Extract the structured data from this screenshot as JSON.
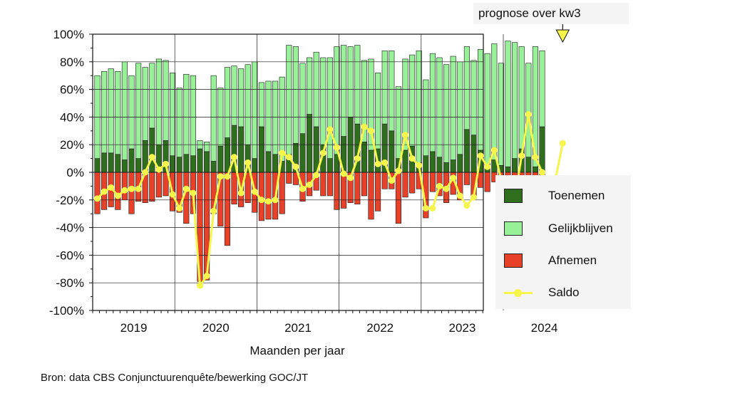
{
  "chart_data": {
    "type": "bar",
    "subtype": "stacked-bar-with-line",
    "xlabel": "Maanden per jaar",
    "ylabel": "",
    "ylim": [
      -100,
      100
    ],
    "yticks": [
      "100%",
      "80%",
      "60%",
      "40%",
      "20%",
      "0%",
      "-20%",
      "-40%",
      "-60%",
      "-80%",
      "-100%"
    ],
    "year_labels": [
      "2019",
      "2020",
      "2021",
      "2022",
      "2023",
      "2024"
    ],
    "months_per_year": 12,
    "grid": true,
    "legend_position": "right",
    "annotation": "prognose over kw3",
    "series": [
      {
        "name": "Toenemen",
        "color": "#2e6e1c",
        "values": [
          10,
          14,
          14,
          13,
          9,
          17,
          10,
          23,
          32,
          20,
          23,
          12,
          11,
          13,
          12,
          17,
          15,
          8,
          19,
          25,
          34,
          33,
          20,
          10,
          33,
          15,
          13,
          8,
          13,
          21,
          28,
          42,
          33,
          20,
          10,
          13,
          26,
          40,
          35,
          22,
          16,
          17,
          35,
          30,
          10,
          16,
          19,
          7,
          12,
          15,
          11,
          7,
          9,
          13,
          31,
          27,
          16,
          6,
          9,
          5,
          4,
          10,
          17,
          11,
          4,
          33
        ]
      },
      {
        "name": "Gelijkblijven",
        "color": "#98f098",
        "values": [
          60,
          59,
          61,
          60,
          71,
          53,
          69,
          53,
          47,
          62,
          58,
          60,
          50,
          58,
          58,
          6,
          7,
          62,
          42,
          51,
          43,
          42,
          58,
          70,
          32,
          51,
          53,
          61,
          79,
          70,
          51,
          41,
          54,
          63,
          73,
          78,
          66,
          51,
          57,
          59,
          66,
          55,
          53,
          58,
          52,
          66,
          66,
          81,
          55,
          71,
          72,
          71,
          75,
          67,
          60,
          54,
          73,
          80,
          84,
          74,
          91,
          84,
          74,
          68,
          87,
          55
        ]
      },
      {
        "name": "Afnemen",
        "color": "#e8412a",
        "values": [
          -30,
          -27,
          -25,
          -27,
          -20,
          -30,
          -21,
          -22,
          -21,
          -18,
          -17,
          -28,
          -29,
          -37,
          -30,
          -79,
          -78,
          -30,
          -39,
          -53,
          -23,
          -25,
          -22,
          -29,
          -35,
          -34,
          -34,
          -30,
          -8,
          -9,
          -21,
          -17,
          -13,
          -17,
          -17,
          -27,
          -26,
          -22,
          -23,
          -17,
          -34,
          -28,
          -12,
          -12,
          -37,
          -18,
          -15,
          -12,
          -33,
          -14,
          -17,
          -22,
          -16,
          -20,
          -9,
          -19,
          -11,
          -14,
          -7,
          -22,
          -5,
          -6,
          -9,
          -21,
          -9,
          -12
        ]
      },
      {
        "name": "Saldo",
        "color": "#f5f54a",
        "values": [
          -19,
          -14,
          -11,
          -17,
          -13,
          -12,
          -12,
          0,
          11,
          2,
          6,
          -16,
          -26,
          -12,
          -15,
          -82,
          -75,
          -28,
          -3,
          -3,
          11,
          -15,
          7,
          -14,
          -20,
          -21,
          -20,
          14,
          11,
          4,
          -12,
          -9,
          -2,
          14,
          31,
          18,
          -1,
          -4,
          10,
          33,
          30,
          6,
          7,
          -6,
          1,
          27,
          10,
          5,
          -26,
          -26,
          -10,
          -12,
          -4,
          -17,
          -24,
          -18,
          12,
          4,
          16,
          -5,
          -21,
          -19,
          12,
          42,
          11,
          0,
          -9,
          -4,
          21
        ]
      }
    ]
  },
  "source_text": "Bron: data CBS Conjunctuurenquête/bewerking GOC/JT"
}
